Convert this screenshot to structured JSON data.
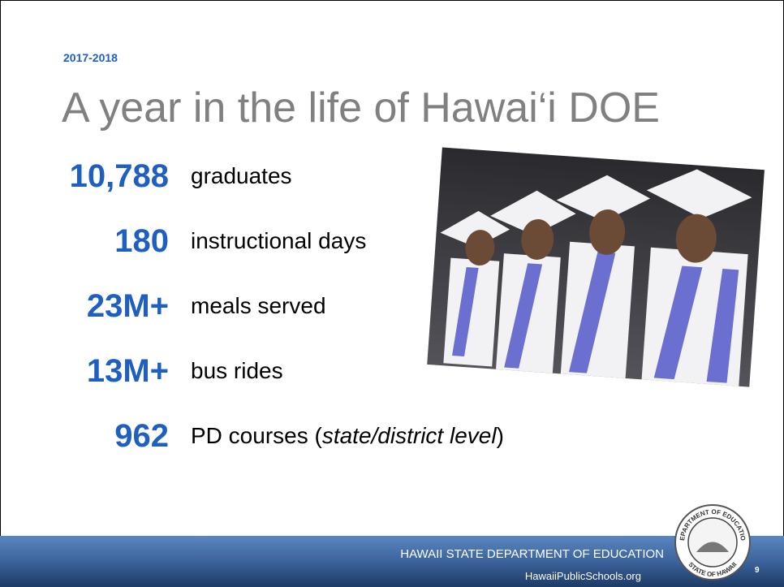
{
  "header": {
    "year": "2017-2018",
    "title": "A year in the life of Hawai‘i DOE"
  },
  "stats": [
    {
      "number": "10,788",
      "label": [
        "graduates"
      ]
    },
    {
      "number": "180",
      "label": [
        "instructional days"
      ]
    },
    {
      "number": "23M+",
      "label": [
        "meals served"
      ]
    },
    {
      "number": "13M+",
      "label": [
        "bus rides"
      ]
    },
    {
      "number": "962",
      "label": [
        "PD courses (",
        "state/district level",
        ")"
      ]
    }
  ],
  "footer": {
    "department": "HAWAII STATE DEPARTMENT OF EDUCATION",
    "website": "HawaiiPublicSchools.org",
    "page": "9"
  },
  "seal": {
    "top": "DEPARTMENT OF EDUCATION",
    "bottom": "STATE OF HAWAII"
  }
}
